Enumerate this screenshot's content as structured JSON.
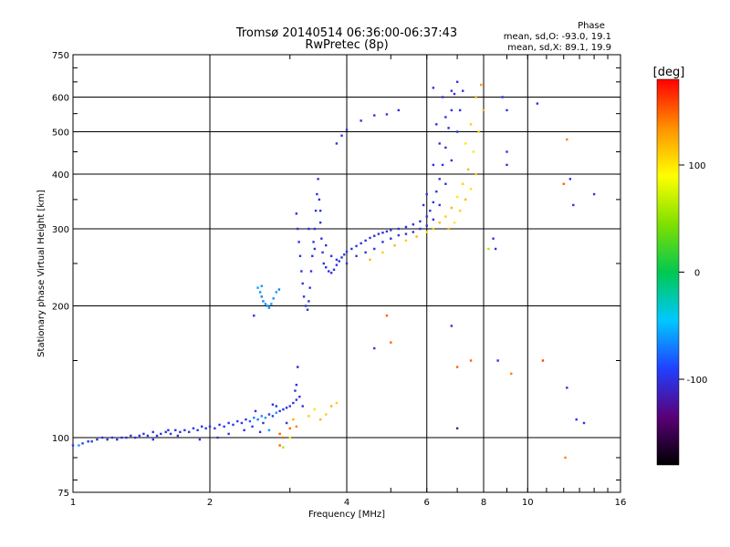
{
  "header": {
    "title": "Tromsø 20140514 06:36:00-06:37:43",
    "subtitle": "RwPretec (8p)"
  },
  "phase_info": {
    "heading": "Phase",
    "line_o": "mean, sd,O: -93.0, 19.1",
    "line_x": "mean, sd,X:  89.1, 19.9"
  },
  "colorbar": {
    "unit_label": "[deg]",
    "ticks": [
      {
        "value": 100,
        "label": "100"
      },
      {
        "value": 0,
        "label": "0"
      },
      {
        "value": -100,
        "label": "-100"
      }
    ],
    "range": [
      -180,
      180
    ],
    "colors": [
      "#000000",
      "#5a0078",
      "#2040ff",
      "#00c8ff",
      "#00c850",
      "#80e000",
      "#ffff00",
      "#ff9000",
      "#ff0000"
    ]
  },
  "chart_data": {
    "type": "scatter",
    "title": "Tromsø 20140514 06:36:00-06:37:43",
    "subtitle": "RwPretec (8p)",
    "xlabel": "Frequency [MHz]",
    "ylabel": "Stationary phase Virtual Height [km]",
    "x_scale": "log",
    "y_scale": "log",
    "xlim": [
      1,
      16
    ],
    "ylim": [
      75,
      750
    ],
    "x_ticks": [
      {
        "value": 1,
        "label": "1"
      },
      {
        "value": 2,
        "label": "2"
      },
      {
        "value": 4,
        "label": "4"
      },
      {
        "value": 6,
        "label": "6"
      },
      {
        "value": 8,
        "label": "8"
      },
      {
        "value": 10,
        "label": "10"
      },
      {
        "value": 16,
        "label": "16"
      }
    ],
    "y_ticks": [
      {
        "value": 75,
        "label": "75"
      },
      {
        "value": 100,
        "label": "100"
      },
      {
        "value": 200,
        "label": "200"
      },
      {
        "value": 300,
        "label": "300"
      },
      {
        "value": 400,
        "label": "400"
      },
      {
        "value": 500,
        "label": "500"
      },
      {
        "value": 600,
        "label": "600"
      },
      {
        "value": 750,
        "label": "750"
      }
    ],
    "x_grid": [
      2,
      4,
      6,
      8,
      10
    ],
    "y_grid": [
      100,
      200,
      300,
      400,
      500,
      600
    ],
    "grid": true,
    "color_encoding": "phase_deg",
    "points": [
      [
        1.0,
        96,
        -95
      ],
      [
        1.03,
        96,
        -60
      ],
      [
        1.05,
        97,
        -90
      ],
      [
        1.08,
        98,
        -100
      ],
      [
        1.1,
        98,
        -95
      ],
      [
        1.13,
        99,
        -100
      ],
      [
        1.16,
        100,
        -98
      ],
      [
        1.19,
        99,
        -100
      ],
      [
        1.22,
        100,
        -97
      ],
      [
        1.25,
        99,
        -100
      ],
      [
        1.28,
        100,
        -99
      ],
      [
        1.31,
        100,
        -98
      ],
      [
        1.34,
        101,
        -100
      ],
      [
        1.37,
        100,
        -99
      ],
      [
        1.4,
        101,
        -100
      ],
      [
        1.43,
        102,
        -98
      ],
      [
        1.46,
        101,
        -100
      ],
      [
        1.5,
        103,
        -97
      ],
      [
        1.53,
        101,
        -100
      ],
      [
        1.56,
        102,
        -99
      ],
      [
        1.6,
        103,
        -100
      ],
      [
        1.64,
        102,
        -98
      ],
      [
        1.68,
        104,
        -100
      ],
      [
        1.72,
        103,
        -97
      ],
      [
        1.76,
        104,
        -100
      ],
      [
        1.8,
        103,
        -99
      ],
      [
        1.84,
        105,
        -100
      ],
      [
        1.88,
        104,
        -98
      ],
      [
        1.92,
        106,
        -100
      ],
      [
        1.96,
        105,
        -95
      ],
      [
        2.0,
        106,
        -100
      ],
      [
        2.05,
        105,
        -97
      ],
      [
        2.1,
        107,
        -100
      ],
      [
        2.15,
        106,
        -95
      ],
      [
        2.2,
        108,
        -100
      ],
      [
        2.25,
        107,
        -97
      ],
      [
        2.3,
        109,
        -90
      ],
      [
        2.35,
        108,
        -100
      ],
      [
        2.4,
        110,
        -95
      ],
      [
        2.45,
        109,
        -80
      ],
      [
        2.5,
        111,
        -65
      ],
      [
        2.55,
        110,
        -70
      ],
      [
        2.6,
        112,
        -65
      ],
      [
        2.65,
        111,
        -60
      ],
      [
        2.7,
        113,
        -100
      ],
      [
        2.75,
        112,
        -95
      ],
      [
        2.8,
        114,
        -60
      ],
      [
        2.85,
        115,
        -100
      ],
      [
        2.9,
        116,
        -95
      ],
      [
        2.95,
        117,
        -100
      ],
      [
        3.0,
        118,
        -97
      ],
      [
        3.05,
        120,
        -100
      ],
      [
        3.1,
        122,
        -98
      ],
      [
        3.15,
        124,
        -100
      ],
      [
        1.5,
        99,
        -100
      ],
      [
        1.62,
        104,
        -100
      ],
      [
        1.7,
        101,
        -98
      ],
      [
        1.9,
        99,
        -100
      ],
      [
        2.08,
        100,
        -100
      ],
      [
        2.2,
        102,
        -98
      ],
      [
        2.38,
        104,
        -100
      ],
      [
        2.48,
        106,
        -97
      ],
      [
        2.52,
        115,
        -100
      ],
      [
        2.58,
        103,
        -98
      ],
      [
        2.62,
        108,
        -100
      ],
      [
        2.7,
        104,
        -60
      ],
      [
        2.75,
        119,
        -100
      ],
      [
        2.8,
        118,
        -100
      ],
      [
        2.85,
        102,
        150
      ],
      [
        2.9,
        100,
        150
      ],
      [
        2.95,
        108,
        -100
      ],
      [
        3.0,
        105,
        150
      ],
      [
        3.05,
        110,
        120
      ],
      [
        3.1,
        106,
        140
      ],
      [
        3.2,
        118,
        -100
      ],
      [
        3.3,
        112,
        110
      ],
      [
        3.4,
        116,
        100
      ],
      [
        3.5,
        110,
        120
      ],
      [
        3.6,
        113,
        110
      ],
      [
        3.7,
        118,
        120
      ],
      [
        3.8,
        120,
        110
      ],
      [
        3.1,
        132,
        -100
      ],
      [
        3.12,
        145,
        -110
      ],
      [
        3.08,
        128,
        -100
      ],
      [
        2.9,
        95,
        60
      ],
      [
        2.85,
        96,
        150
      ],
      [
        3.0,
        100,
        100
      ],
      [
        2.55,
        220,
        -60
      ],
      [
        2.58,
        215,
        -65
      ],
      [
        2.6,
        210,
        -70
      ],
      [
        2.62,
        205,
        -70
      ],
      [
        2.65,
        202,
        -65
      ],
      [
        2.68,
        200,
        -60
      ],
      [
        2.7,
        198,
        -65
      ],
      [
        2.73,
        202,
        -60
      ],
      [
        2.76,
        208,
        -65
      ],
      [
        2.8,
        215,
        -60
      ],
      [
        2.84,
        218,
        -70
      ],
      [
        2.5,
        190,
        -100
      ],
      [
        2.6,
        222,
        -60
      ],
      [
        3.1,
        325,
        -100
      ],
      [
        3.12,
        300,
        -100
      ],
      [
        3.14,
        280,
        -100
      ],
      [
        3.16,
        260,
        -100
      ],
      [
        3.18,
        240,
        -100
      ],
      [
        3.2,
        225,
        -100
      ],
      [
        3.22,
        210,
        -100
      ],
      [
        3.25,
        200,
        -100
      ],
      [
        3.28,
        196,
        -100
      ],
      [
        3.3,
        205,
        -100
      ],
      [
        3.32,
        220,
        -100
      ],
      [
        3.34,
        240,
        -100
      ],
      [
        3.36,
        260,
        -100
      ],
      [
        3.38,
        280,
        -100
      ],
      [
        3.4,
        300,
        -100
      ],
      [
        3.42,
        330,
        -100
      ],
      [
        3.44,
        360,
        -100
      ],
      [
        3.46,
        390,
        -100
      ],
      [
        3.48,
        350,
        -100
      ],
      [
        3.5,
        310,
        -100
      ],
      [
        3.52,
        285,
        -100
      ],
      [
        3.54,
        265,
        -100
      ],
      [
        3.56,
        250,
        -100
      ],
      [
        3.6,
        245,
        -100
      ],
      [
        3.65,
        240,
        -100
      ],
      [
        3.7,
        238,
        -100
      ],
      [
        3.75,
        242,
        -100
      ],
      [
        3.8,
        248,
        -100
      ],
      [
        3.85,
        253,
        -100
      ],
      [
        3.9,
        258,
        -100
      ],
      [
        3.95,
        262,
        -100
      ],
      [
        4.0,
        266,
        -100
      ],
      [
        4.1,
        270,
        -100
      ],
      [
        4.2,
        274,
        -100
      ],
      [
        4.3,
        278,
        -100
      ],
      [
        4.4,
        282,
        -100
      ],
      [
        4.5,
        286,
        -100
      ],
      [
        4.6,
        289,
        -100
      ],
      [
        4.7,
        292,
        -100
      ],
      [
        4.8,
        294,
        -100
      ],
      [
        4.9,
        296,
        -100
      ],
      [
        5.0,
        298,
        -100
      ],
      [
        5.2,
        300,
        -100
      ],
      [
        5.4,
        303,
        -100
      ],
      [
        5.6,
        307,
        -100
      ],
      [
        5.8,
        312,
        -100
      ],
      [
        6.0,
        320,
        -100
      ],
      [
        6.1,
        330,
        -100
      ],
      [
        6.2,
        345,
        -100
      ],
      [
        6.3,
        365,
        -100
      ],
      [
        6.4,
        390,
        -100
      ],
      [
        6.5,
        420,
        -100
      ],
      [
        6.6,
        460,
        -100
      ],
      [
        6.7,
        510,
        -100
      ],
      [
        6.8,
        560,
        -100
      ],
      [
        6.9,
        610,
        -100
      ],
      [
        7.0,
        650,
        -100
      ],
      [
        3.3,
        300,
        -100
      ],
      [
        3.4,
        270,
        -100
      ],
      [
        3.5,
        330,
        -100
      ],
      [
        3.6,
        275,
        -100
      ],
      [
        3.7,
        260,
        -100
      ],
      [
        3.8,
        255,
        -100
      ],
      [
        4.0,
        250,
        -100
      ],
      [
        4.2,
        260,
        -100
      ],
      [
        4.4,
        265,
        -100
      ],
      [
        4.6,
        270,
        -100
      ],
      [
        4.8,
        280,
        -100
      ],
      [
        5.0,
        285,
        -100
      ],
      [
        5.2,
        290,
        -100
      ],
      [
        5.4,
        292,
        -100
      ],
      [
        5.6,
        295,
        -100
      ],
      [
        5.8,
        300,
        -100
      ],
      [
        6.0,
        305,
        -100
      ],
      [
        6.2,
        315,
        -100
      ],
      [
        6.4,
        340,
        -100
      ],
      [
        6.6,
        380,
        -100
      ],
      [
        6.8,
        430,
        -100
      ],
      [
        7.0,
        500,
        -100
      ],
      [
        7.1,
        560,
        -100
      ],
      [
        7.2,
        620,
        -100
      ],
      [
        6.2,
        420,
        -100
      ],
      [
        6.4,
        470,
        -100
      ],
      [
        6.6,
        540,
        -100
      ],
      [
        6.8,
        620,
        -100
      ],
      [
        6.5,
        600,
        -100
      ],
      [
        6.3,
        520,
        -100
      ],
      [
        5.9,
        340,
        -100
      ],
      [
        6.0,
        360,
        -100
      ],
      [
        4.0,
        505,
        -100
      ],
      [
        4.3,
        530,
        -100
      ],
      [
        4.6,
        545,
        -100
      ],
      [
        4.9,
        548,
        -100
      ],
      [
        5.2,
        560,
        -100
      ],
      [
        3.8,
        470,
        -100
      ],
      [
        3.9,
        490,
        -100
      ],
      [
        4.5,
        255,
        120
      ],
      [
        4.8,
        265,
        110
      ],
      [
        5.1,
        275,
        120
      ],
      [
        5.4,
        282,
        110
      ],
      [
        5.7,
        288,
        120
      ],
      [
        6.0,
        295,
        100
      ],
      [
        6.2,
        300,
        110
      ],
      [
        6.4,
        310,
        120
      ],
      [
        6.6,
        320,
        110
      ],
      [
        6.8,
        335,
        120
      ],
      [
        7.0,
        355,
        100
      ],
      [
        7.2,
        380,
        110
      ],
      [
        7.4,
        410,
        120
      ],
      [
        7.6,
        450,
        100
      ],
      [
        7.8,
        500,
        110
      ],
      [
        8.0,
        560,
        120
      ],
      [
        7.3,
        470,
        100
      ],
      [
        7.5,
        520,
        110
      ],
      [
        7.7,
        600,
        120
      ],
      [
        7.9,
        640,
        130
      ],
      [
        6.7,
        300,
        120
      ],
      [
        6.9,
        310,
        100
      ],
      [
        7.1,
        330,
        110
      ],
      [
        7.3,
        350,
        120
      ],
      [
        7.5,
        370,
        100
      ],
      [
        7.7,
        400,
        110
      ],
      [
        5.0,
        165,
        150
      ],
      [
        4.6,
        160,
        -100
      ],
      [
        4.9,
        190,
        150
      ],
      [
        6.2,
        630,
        -100
      ],
      [
        7.5,
        150,
        150
      ],
      [
        8.4,
        285,
        -100
      ],
      [
        8.5,
        270,
        -100
      ],
      [
        8.6,
        150,
        -100
      ],
      [
        8.8,
        600,
        -100
      ],
      [
        9.0,
        560,
        -100
      ],
      [
        9.0,
        450,
        -100
      ],
      [
        9.0,
        420,
        -100
      ],
      [
        9.2,
        140,
        140
      ],
      [
        10.5,
        580,
        -100
      ],
      [
        10.8,
        150,
        160
      ],
      [
        12.0,
        380,
        150
      ],
      [
        12.2,
        480,
        140
      ],
      [
        12.4,
        390,
        -100
      ],
      [
        12.6,
        340,
        -100
      ],
      [
        14.0,
        360,
        -100
      ],
      [
        7.0,
        145,
        150
      ],
      [
        7.0,
        105,
        -120
      ],
      [
        6.8,
        180,
        -100
      ],
      [
        8.2,
        270,
        60
      ],
      [
        12.2,
        130,
        -100
      ],
      [
        12.8,
        110,
        -100
      ],
      [
        13.3,
        108,
        -100
      ],
      [
        12.1,
        90,
        140
      ]
    ]
  },
  "page_size": [
    800,
    600
  ]
}
